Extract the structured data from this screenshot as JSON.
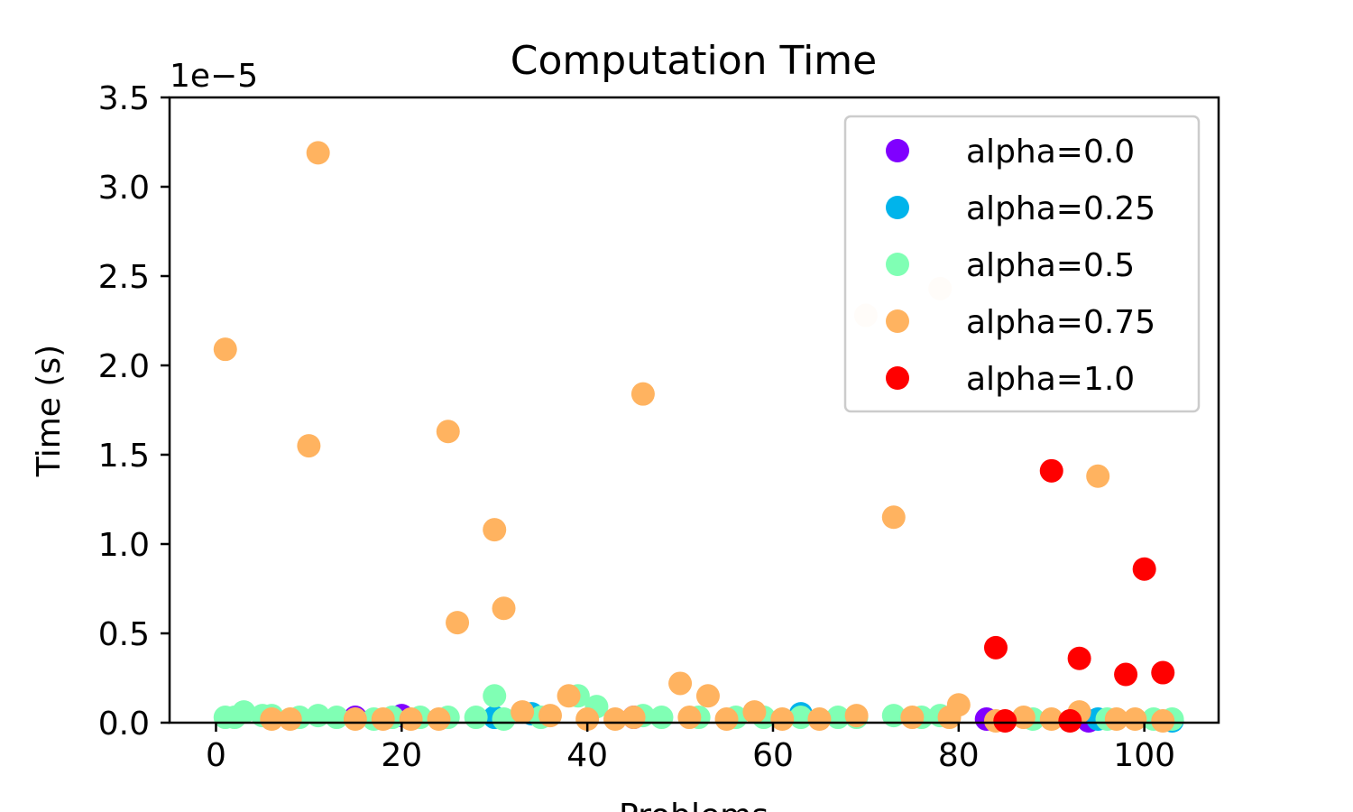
{
  "chart_data": {
    "type": "scatter",
    "title": "Computation Time",
    "xlabel": "Problems",
    "ylabel": "Time (s)",
    "y_scale_label": "1e−5",
    "y_scale": 1e-05,
    "xlim": [
      -5,
      108
    ],
    "ylim": [
      0,
      3.5e-05
    ],
    "x_ticks": [
      0,
      20,
      40,
      60,
      80,
      100
    ],
    "x_tick_labels": [
      "0",
      "20",
      "40",
      "60",
      "80",
      "100"
    ],
    "y_ticks": [
      0,
      5e-06,
      1e-05,
      1.5e-05,
      2e-05,
      2.5e-05,
      3e-05,
      3.5e-05
    ],
    "y_tick_labels": [
      "0.0",
      "0.5",
      "1.0",
      "1.5",
      "2.0",
      "2.5",
      "3.0",
      "3.5"
    ],
    "grid": false,
    "legend_position": "top-right",
    "series": [
      {
        "name": "alpha=0.0",
        "color": "#8000ff",
        "points": [
          [
            15,
            3e-07
          ],
          [
            20,
            4e-07
          ],
          [
            45,
            3e-07
          ],
          [
            63,
            4e-07
          ],
          [
            83,
            2e-07
          ],
          [
            94,
            1e-07
          ]
        ]
      },
      {
        "name": "alpha=0.25",
        "color": "#00b4eb",
        "points": [
          [
            30,
            3e-07
          ],
          [
            34,
            5e-07
          ],
          [
            63,
            5e-07
          ],
          [
            95,
            2e-07
          ],
          [
            103,
            1e-07
          ]
        ]
      },
      {
        "name": "alpha=0.5",
        "color": "#80ffb4",
        "points": [
          [
            1,
            3e-07
          ],
          [
            2,
            3e-07
          ],
          [
            3,
            6e-07
          ],
          [
            5,
            4e-07
          ],
          [
            6,
            4e-07
          ],
          [
            9,
            3e-07
          ],
          [
            11,
            4e-07
          ],
          [
            13,
            3e-07
          ],
          [
            17,
            2e-07
          ],
          [
            19,
            3e-07
          ],
          [
            22,
            3e-07
          ],
          [
            25,
            3e-07
          ],
          [
            28,
            3e-07
          ],
          [
            30,
            1.5e-06
          ],
          [
            31,
            2e-07
          ],
          [
            35,
            3e-07
          ],
          [
            39,
            1.5e-06
          ],
          [
            41,
            9e-07
          ],
          [
            46,
            4e-07
          ],
          [
            48,
            3e-07
          ],
          [
            52,
            3e-07
          ],
          [
            56,
            3e-07
          ],
          [
            59,
            3e-07
          ],
          [
            63,
            3e-07
          ],
          [
            67,
            3e-07
          ],
          [
            69,
            3e-07
          ],
          [
            73,
            4e-07
          ],
          [
            76,
            3e-07
          ],
          [
            78,
            4e-07
          ],
          [
            88,
            2e-07
          ],
          [
            96,
            2e-07
          ],
          [
            101,
            2e-07
          ],
          [
            103,
            2e-07
          ]
        ]
      },
      {
        "name": "alpha=0.75",
        "color": "#ffb360",
        "points": [
          [
            1,
            2.09e-05
          ],
          [
            6,
            2e-07
          ],
          [
            8,
            2e-07
          ],
          [
            10,
            1.55e-05
          ],
          [
            11,
            3.19e-05
          ],
          [
            15,
            2e-07
          ],
          [
            18,
            2e-07
          ],
          [
            21,
            2e-07
          ],
          [
            24,
            2e-07
          ],
          [
            25,
            1.63e-05
          ],
          [
            26,
            5.6e-06
          ],
          [
            30,
            1.08e-05
          ],
          [
            31,
            6.4e-06
          ],
          [
            33,
            6e-07
          ],
          [
            36,
            4e-07
          ],
          [
            38,
            1.5e-06
          ],
          [
            40,
            2e-07
          ],
          [
            43,
            2e-07
          ],
          [
            45,
            3e-07
          ],
          [
            46,
            1.84e-05
          ],
          [
            50,
            2.2e-06
          ],
          [
            51,
            3e-07
          ],
          [
            53,
            1.5e-06
          ],
          [
            55,
            2e-07
          ],
          [
            58,
            6e-07
          ],
          [
            61,
            2e-07
          ],
          [
            65,
            2e-07
          ],
          [
            69,
            4e-07
          ],
          [
            73,
            1.15e-05
          ],
          [
            75,
            3e-07
          ],
          [
            79,
            3e-07
          ],
          [
            80,
            1e-06
          ],
          [
            84,
            1e-07
          ],
          [
            87,
            3e-07
          ],
          [
            90,
            2e-07
          ],
          [
            93,
            6e-07
          ],
          [
            95,
            1.38e-05
          ],
          [
            97,
            2e-07
          ],
          [
            99,
            2e-07
          ],
          [
            102,
            1e-07
          ]
        ]
      },
      {
        "name": "alpha=1.0",
        "color": "#ff0000",
        "points": [
          [
            84,
            4.2e-06
          ],
          [
            85,
            1e-07
          ],
          [
            90,
            1.41e-05
          ],
          [
            92,
            1e-07
          ],
          [
            93,
            3.6e-06
          ],
          [
            98,
            2.7e-06
          ],
          [
            100,
            8.6e-06
          ],
          [
            102,
            2.8e-06
          ]
        ]
      }
    ],
    "faded_points": [
      {
        "x": 70,
        "y": 2.28e-05,
        "color": "#fff0e2"
      },
      {
        "x": 78,
        "y": 2.43e-05,
        "color": "#fff0e2"
      }
    ]
  }
}
